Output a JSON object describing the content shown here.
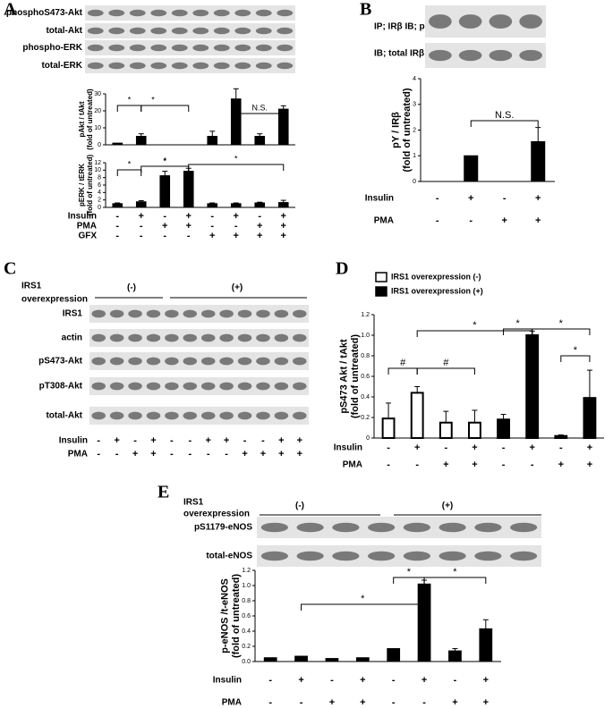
{
  "panel_a": {
    "letter": "A",
    "blots": [
      "phosphoS473-Akt",
      "total-Akt",
      "phospho-ERK",
      "total-ERK"
    ],
    "treatments": [
      {
        "label": "Insulin",
        "signs": [
          "-",
          "+",
          "-",
          "+",
          "-",
          "+",
          "-",
          "+"
        ]
      },
      {
        "label": "PMA",
        "signs": [
          "-",
          "-",
          "+",
          "+",
          "-",
          "-",
          "+",
          "+"
        ]
      },
      {
        "label": "GFX",
        "signs": [
          "-",
          "-",
          "-",
          "-",
          "+",
          "+",
          "+",
          "+"
        ]
      }
    ]
  },
  "panel_b": {
    "letter": "B",
    "blots": [
      "IP; IRβ  IB; pY",
      "IB; total IRβ"
    ],
    "treatments": [
      {
        "label": "Insulin",
        "signs": [
          "-",
          "+",
          "-",
          "+"
        ]
      },
      {
        "label": "PMA",
        "signs": [
          "-",
          "-",
          "+",
          "+"
        ]
      }
    ]
  },
  "panel_c": {
    "letter": "C",
    "group_label": [
      "IRS1",
      "overexpression"
    ],
    "groups": [
      "(-)",
      "(+)"
    ],
    "blots": [
      "IRS1",
      "actin",
      "pS473-Akt",
      "pT308-Akt",
      "total-Akt"
    ],
    "treatments": [
      {
        "label": "Insulin",
        "signs": [
          "-",
          "+",
          "-",
          "+",
          "-",
          "-",
          "+",
          "+",
          "-",
          "-",
          "+",
          "+"
        ]
      },
      {
        "label": "PMA",
        "signs": [
          "-",
          "-",
          "+",
          "+",
          "-",
          "-",
          "-",
          "-",
          "+",
          "+",
          "+",
          "+"
        ]
      }
    ]
  },
  "panel_d": {
    "letter": "D",
    "treatments": [
      {
        "label": "Insulin",
        "signs": [
          "-",
          "+",
          "-",
          "+",
          "-",
          "+",
          "-",
          "+"
        ]
      },
      {
        "label": "PMA",
        "signs": [
          "-",
          "-",
          "+",
          "+",
          "-",
          "-",
          "+",
          "+"
        ]
      }
    ]
  },
  "panel_e": {
    "letter": "E",
    "group_label": [
      "IRS1",
      "overexpression"
    ],
    "groups": [
      "(-)",
      "(+)"
    ],
    "blots": [
      "pS1179-eNOS",
      "total-eNOS"
    ],
    "treatments": [
      {
        "label": "Insulin",
        "signs": [
          "-",
          "+",
          "-",
          "+",
          "-",
          "+",
          "-",
          "+"
        ]
      },
      {
        "label": "PMA",
        "signs": [
          "-",
          "-",
          "+",
          "+",
          "-",
          "-",
          "+",
          "+"
        ]
      }
    ]
  },
  "chart_data": [
    {
      "type": "bar",
      "ylabel": [
        "pAkt / tAkt",
        "(fold of untreated)"
      ],
      "ylim": [
        0,
        30
      ],
      "yticks": [
        0,
        10,
        20,
        30
      ],
      "color": "#000000",
      "values": [
        1,
        5,
        0,
        0,
        5,
        27,
        5,
        21
      ],
      "errors": [
        null,
        1.5,
        null,
        null,
        3,
        6,
        1.5,
        2
      ],
      "annotations": [
        "*",
        "*",
        "N.S."
      ]
    },
    {
      "type": "bar",
      "ylabel": [
        "pERK / tERK",
        "(fold of untreated)"
      ],
      "ylim": [
        0,
        12
      ],
      "yticks": [
        0,
        2,
        4,
        6,
        8,
        10,
        12
      ],
      "color": "#000000",
      "values": [
        1,
        1.5,
        8.5,
        9.7,
        1,
        1,
        1.2,
        1.3
      ],
      "errors": [
        0.2,
        0.3,
        1.2,
        0.8,
        0.2,
        0.2,
        0.2,
        0.6
      ],
      "annotations": [
        "*",
        "*",
        "*",
        "*"
      ]
    },
    {
      "type": "bar",
      "ylabel": [
        "pY / IRβ",
        "(fold of untreated)"
      ],
      "ylim": [
        0,
        4
      ],
      "yticks": [
        0,
        1,
        2,
        3,
        4
      ],
      "color": "#000000",
      "values": [
        null,
        1,
        null,
        1.55
      ],
      "errors": [
        null,
        null,
        null,
        0.55
      ],
      "annotations": [
        "N.S."
      ]
    },
    {
      "type": "bar",
      "ylabel": [
        "pS473 Akt / tAkt",
        "(fold of untreated)"
      ],
      "ylim": [
        0,
        1.2
      ],
      "yticks": [
        0,
        0.2,
        0.4,
        0.6,
        0.8,
        {
          "value": 1,
          "label": "1.0"
        },
        1.2
      ],
      "series": [
        {
          "name": "IRS1 overexpression (-)",
          "color": "#ffffff",
          "values": [
            0.19,
            0.44,
            0.15,
            0.15,
            null,
            null,
            null,
            null
          ],
          "errors": [
            0.15,
            0.06,
            0.11,
            0.12,
            null,
            null,
            null,
            null
          ]
        },
        {
          "name": "IRS1 overexpression (+)",
          "color": "#000000",
          "values": [
            null,
            null,
            null,
            null,
            0.18,
            1,
            0.02,
            0.39
          ],
          "errors": [
            null,
            null,
            null,
            null,
            0.05,
            0.04,
            0.01,
            0.27
          ]
        }
      ],
      "annotations": [
        "#",
        "#",
        "*",
        "*",
        "*",
        "*"
      ]
    },
    {
      "type": "bar",
      "ylabel": [
        "p-eNOS /t-eNOS",
        "(fold of untreated)"
      ],
      "ylim": [
        0,
        1.2
      ],
      "yticks": [
        {
          "value": 0,
          "label": "0.0"
        },
        0.2,
        0.4,
        0.6,
        0.8,
        {
          "value": 1,
          "label": "1.0"
        },
        1.2
      ],
      "color": "#000000",
      "values": [
        0.05,
        0.07,
        0.04,
        0.05,
        0.17,
        1.02,
        0.14,
        0.43
      ],
      "errors": [
        null,
        null,
        null,
        null,
        null,
        0.05,
        0.03,
        0.12
      ],
      "annotations": [
        "*",
        "*",
        "*"
      ]
    }
  ]
}
